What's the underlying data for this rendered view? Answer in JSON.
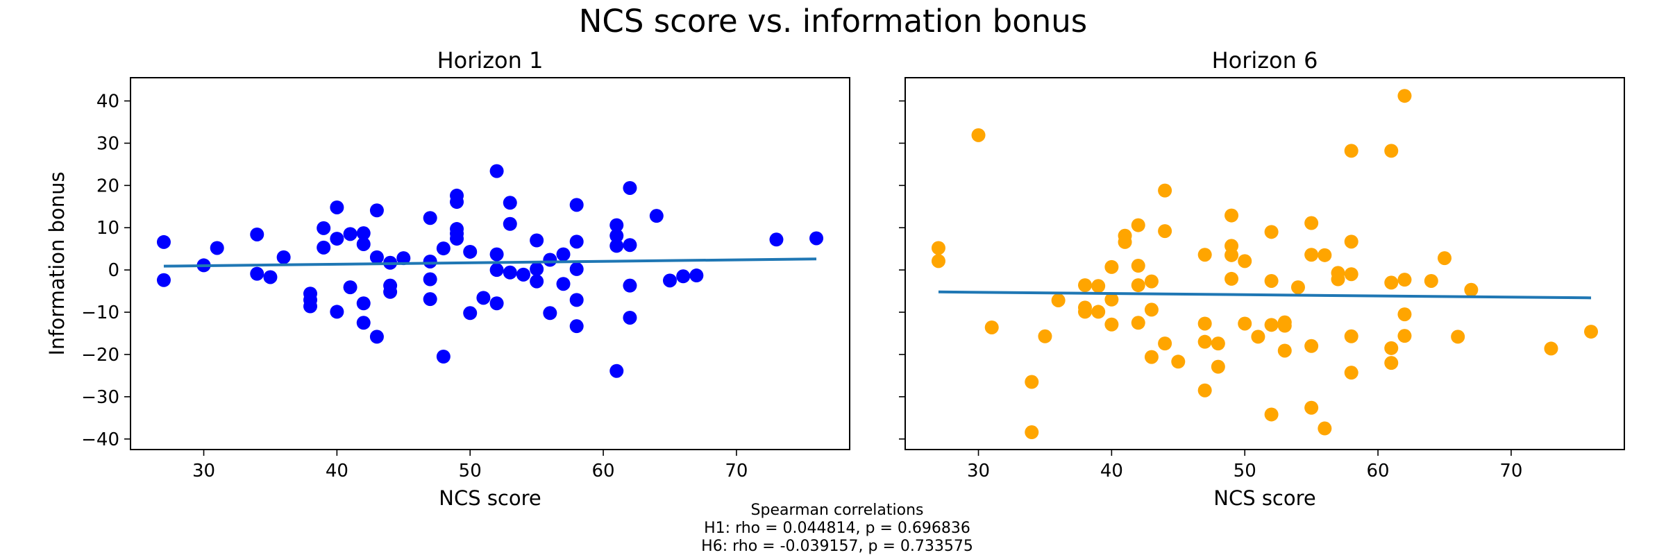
{
  "figure": {
    "title": "NCS score vs. information bonus",
    "note_lines": [
      "Spearman correlations",
      "H1: rho = 0.044814, p = 0.696836",
      "H6: rho = -0.039157, p = 0.733575"
    ]
  },
  "chart_data": [
    {
      "type": "scatter",
      "title": "Horizon 1",
      "xlabel": "NCS score",
      "ylabel": "Information bonus",
      "xlim": [
        24.5,
        78.5
      ],
      "ylim": [
        -42.5,
        45.5
      ],
      "xticks": [
        30,
        40,
        50,
        60,
        70
      ],
      "yticks": [
        -40,
        -30,
        -20,
        -10,
        0,
        10,
        20,
        30,
        40
      ],
      "grid": false,
      "marker_color": "#0000ff",
      "fit_color": "#1f77b4",
      "fit_line": {
        "x": [
          27,
          76
        ],
        "y": [
          0.9,
          2.6
        ]
      },
      "series": [
        {
          "points": [
            [
              27,
              6.6
            ],
            [
              27,
              -2.4
            ],
            [
              30,
              1.1
            ],
            [
              31,
              5.2
            ],
            [
              34,
              8.4
            ],
            [
              34,
              -0.9
            ],
            [
              35,
              -1.7
            ],
            [
              36,
              3.0
            ],
            [
              38,
              -5.6
            ],
            [
              38,
              -7.1
            ],
            [
              38,
              -8.6
            ],
            [
              39,
              9.9
            ],
            [
              39,
              5.3
            ],
            [
              40,
              14.8
            ],
            [
              40,
              7.4
            ],
            [
              40,
              -9.9
            ],
            [
              41,
              8.5
            ],
            [
              41,
              -4.1
            ],
            [
              42,
              8.7
            ],
            [
              42,
              6.1
            ],
            [
              42,
              -7.9
            ],
            [
              42,
              -12.5
            ],
            [
              43,
              14.1
            ],
            [
              43,
              3.0
            ],
            [
              43,
              -15.8
            ],
            [
              44,
              1.7
            ],
            [
              44,
              -3.7
            ],
            [
              44,
              -5.2
            ],
            [
              45,
              2.8
            ],
            [
              47,
              12.3
            ],
            [
              47,
              2.0
            ],
            [
              47,
              -2.2
            ],
            [
              47,
              -6.9
            ],
            [
              48,
              5.1
            ],
            [
              48,
              -20.5
            ],
            [
              49,
              17.6
            ],
            [
              49,
              16.1
            ],
            [
              49,
              9.7
            ],
            [
              49,
              8.6
            ],
            [
              49,
              7.4
            ],
            [
              50,
              4.3
            ],
            [
              50,
              -10.2
            ],
            [
              51,
              -6.6
            ],
            [
              52,
              23.4
            ],
            [
              52,
              3.7
            ],
            [
              52,
              0.0
            ],
            [
              52,
              -7.9
            ],
            [
              53,
              15.9
            ],
            [
              53,
              10.9
            ],
            [
              53,
              -0.6
            ],
            [
              54,
              -1.1
            ],
            [
              55,
              7.0
            ],
            [
              55,
              0.2
            ],
            [
              55,
              -2.7
            ],
            [
              56,
              2.4
            ],
            [
              56,
              -10.2
            ],
            [
              57,
              3.7
            ],
            [
              57,
              -3.3
            ],
            [
              58,
              15.4
            ],
            [
              58,
              6.7
            ],
            [
              58,
              0.2
            ],
            [
              58,
              -7.1
            ],
            [
              58,
              -13.3
            ],
            [
              61,
              10.6
            ],
            [
              61,
              8.1
            ],
            [
              61,
              5.7
            ],
            [
              61,
              -23.9
            ],
            [
              62,
              19.4
            ],
            [
              62,
              5.9
            ],
            [
              62,
              -3.7
            ],
            [
              62,
              -11.3
            ],
            [
              64,
              12.8
            ],
            [
              65,
              -2.5
            ],
            [
              66,
              -1.5
            ],
            [
              67,
              -1.3
            ],
            [
              73,
              7.2
            ],
            [
              76,
              7.5
            ]
          ]
        }
      ]
    },
    {
      "type": "scatter",
      "title": "Horizon 6",
      "xlabel": "NCS score",
      "ylabel": "",
      "xlim": [
        24.5,
        78.5
      ],
      "ylim": [
        -42.5,
        45.5
      ],
      "xticks": [
        30,
        40,
        50,
        60,
        70
      ],
      "yticks": [
        -40,
        -30,
        -20,
        -10,
        0,
        10,
        20,
        30,
        40
      ],
      "grid": false,
      "marker_color": "#ffa500",
      "fit_color": "#1f77b4",
      "fit_line": {
        "x": [
          27,
          76
        ],
        "y": [
          -5.2,
          -6.6
        ]
      },
      "series": [
        {
          "points": [
            [
              27,
              5.2
            ],
            [
              27,
              2.1
            ],
            [
              30,
              31.9
            ],
            [
              31,
              -13.6
            ],
            [
              34,
              -26.5
            ],
            [
              34,
              -38.4
            ],
            [
              35,
              -15.7
            ],
            [
              36,
              -7.2
            ],
            [
              38,
              -3.6
            ],
            [
              38,
              -8.9
            ],
            [
              38,
              -9.9
            ],
            [
              39,
              -3.8
            ],
            [
              39,
              -9.9
            ],
            [
              40,
              0.7
            ],
            [
              40,
              -7.0
            ],
            [
              40,
              -12.9
            ],
            [
              41,
              8.1
            ],
            [
              41,
              6.6
            ],
            [
              42,
              10.6
            ],
            [
              42,
              1.0
            ],
            [
              42,
              -3.6
            ],
            [
              42,
              -12.5
            ],
            [
              43,
              -2.7
            ],
            [
              43,
              -9.4
            ],
            [
              43,
              -20.6
            ],
            [
              44,
              18.8
            ],
            [
              44,
              9.2
            ],
            [
              44,
              -17.4
            ],
            [
              45,
              -21.7
            ],
            [
              47,
              3.6
            ],
            [
              47,
              -12.7
            ],
            [
              47,
              -17.0
            ],
            [
              47,
              -28.5
            ],
            [
              48,
              -17.4
            ],
            [
              48,
              -22.9
            ],
            [
              49,
              12.9
            ],
            [
              49,
              5.7
            ],
            [
              49,
              3.5
            ],
            [
              49,
              -2.1
            ],
            [
              50,
              2.1
            ],
            [
              50,
              -12.7
            ],
            [
              51,
              -15.8
            ],
            [
              52,
              9.0
            ],
            [
              52,
              -2.6
            ],
            [
              52,
              -13.0
            ],
            [
              52,
              -34.2
            ],
            [
              53,
              -12.4
            ],
            [
              53,
              -13.2
            ],
            [
              53,
              -19.1
            ],
            [
              54,
              -4.1
            ],
            [
              55,
              11.1
            ],
            [
              55,
              3.6
            ],
            [
              55,
              -18.0
            ],
            [
              55,
              -32.6
            ],
            [
              56,
              3.5
            ],
            [
              56,
              -37.5
            ],
            [
              57,
              -0.7
            ],
            [
              57,
              -2.2
            ],
            [
              58,
              28.2
            ],
            [
              58,
              6.7
            ],
            [
              58,
              -1.0
            ],
            [
              58,
              -15.7
            ],
            [
              58,
              -24.3
            ],
            [
              61,
              28.2
            ],
            [
              61,
              -3.0
            ],
            [
              61,
              -18.5
            ],
            [
              61,
              -22.0
            ],
            [
              62,
              41.2
            ],
            [
              62,
              -2.3
            ],
            [
              62,
              -10.5
            ],
            [
              62,
              -15.6
            ],
            [
              64,
              -2.6
            ],
            [
              65,
              2.8
            ],
            [
              66,
              -15.8
            ],
            [
              67,
              -4.7
            ],
            [
              73,
              -18.6
            ],
            [
              76,
              -14.6
            ]
          ]
        }
      ]
    }
  ]
}
